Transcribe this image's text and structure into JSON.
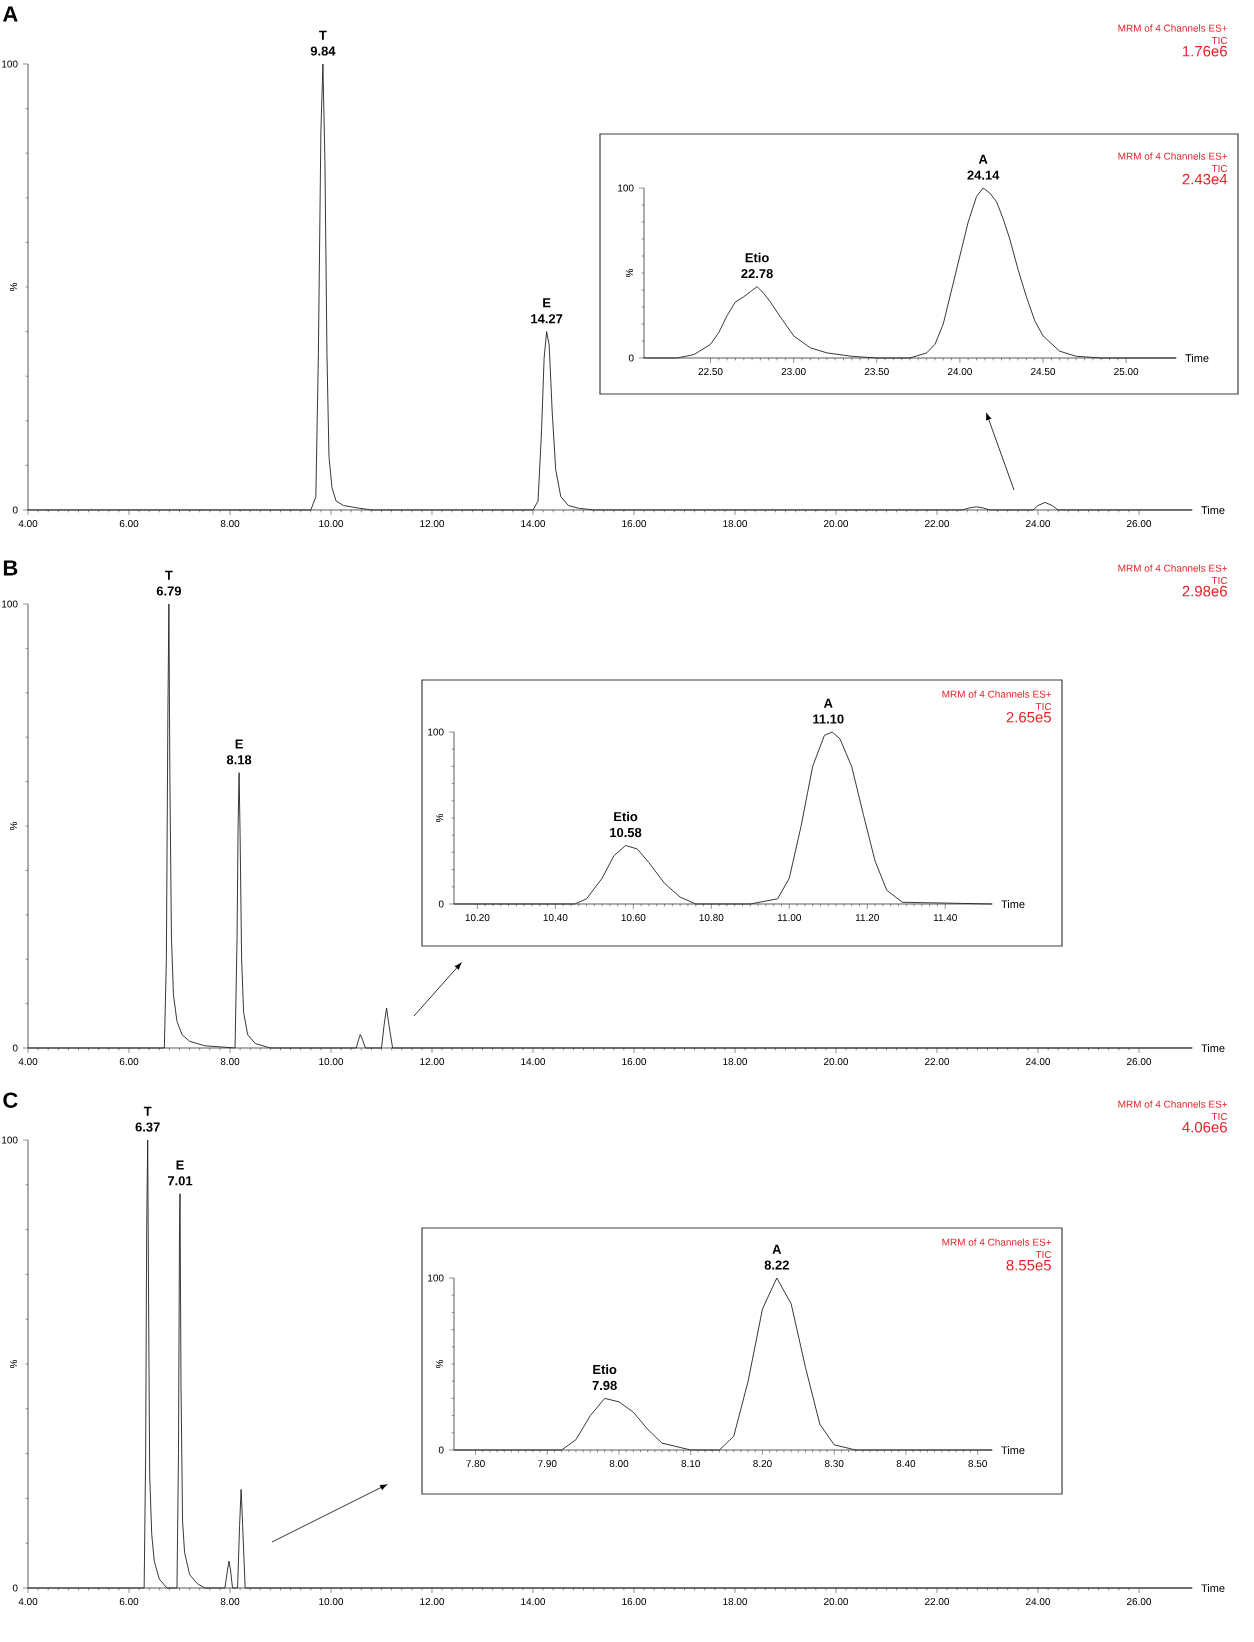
{
  "chart_data": [
    {
      "type": "line",
      "title": "A",
      "xlabel": "Time",
      "ylabel": "%",
      "color": "#222222",
      "xlim": [
        4,
        27.05
      ],
      "ylim": [
        0,
        100
      ],
      "yticks": [
        0,
        100
      ],
      "xticks": [
        {
          "value": 4,
          "label": "4.00"
        },
        {
          "value": 6,
          "label": "6.00"
        },
        {
          "value": 8,
          "label": "8.00"
        },
        {
          "value": 10,
          "label": "10.00"
        },
        {
          "value": 12,
          "label": "12.00"
        },
        {
          "value": 14,
          "label": "14.00"
        },
        {
          "value": 16,
          "label": "16.00"
        },
        {
          "value": 18,
          "label": "18.00"
        },
        {
          "value": 20,
          "label": "20.00"
        },
        {
          "value": 22,
          "label": "22.00"
        },
        {
          "value": 24,
          "label": "24.00"
        },
        {
          "value": 26,
          "label": "26.00"
        }
      ],
      "x": [
        4,
        9.6,
        9.7,
        9.75,
        9.8,
        9.84,
        9.88,
        9.92,
        9.96,
        10.02,
        10.1,
        10.25,
        10.5,
        10.8,
        14.0,
        14.1,
        14.17,
        14.22,
        14.27,
        14.32,
        14.38,
        14.45,
        14.55,
        14.7,
        14.9,
        15.2,
        22.5,
        22.65,
        22.78,
        22.9,
        23.05,
        23.9,
        24.0,
        24.14,
        24.28,
        24.4,
        27.05
      ],
      "values": [
        0,
        0,
        3,
        35,
        85,
        100,
        78,
        35,
        12,
        5,
        2,
        1,
        0.5,
        0,
        0,
        2,
        18,
        34,
        40,
        37,
        22,
        9,
        3,
        1,
        0.4,
        0,
        0,
        0.5,
        0.7,
        0.5,
        0,
        0,
        1,
        1.7,
        1,
        0,
        0
      ],
      "annotations": [
        "MRM of 4 Channels ES+",
        "TIC",
        "1.76e6",
        {
          "text": "T",
          "x": 9.84,
          "y": 100
        },
        {
          "text": "9.84",
          "x": 9.84,
          "y": 100
        },
        {
          "text": "E",
          "x": 14.27,
          "y": 40
        },
        {
          "text": "14.27",
          "x": 14.27,
          "y": 40
        }
      ]
    },
    {
      "type": "line",
      "xlabel": "Time",
      "ylabel": "%",
      "color": "#222222",
      "xlim": [
        22.1,
        25.3
      ],
      "ylim": [
        0,
        100
      ],
      "yticks": [
        0,
        100
      ],
      "xticks": [
        {
          "value": 22.5,
          "label": "22.50"
        },
        {
          "value": 23,
          "label": "23.00"
        },
        {
          "value": 23.5,
          "label": "23.50"
        },
        {
          "value": 24,
          "label": "24.00"
        },
        {
          "value": 24.5,
          "label": "24.50"
        },
        {
          "value": 25,
          "label": "25.00"
        }
      ],
      "x": [
        22.1,
        22.3,
        22.4,
        22.5,
        22.55,
        22.6,
        22.65,
        22.7,
        22.74,
        22.78,
        22.82,
        22.86,
        22.9,
        22.95,
        23.0,
        23.1,
        23.2,
        23.35,
        23.5,
        23.7,
        23.8,
        23.85,
        23.9,
        23.95,
        24.0,
        24.05,
        24.1,
        24.14,
        24.18,
        24.22,
        24.26,
        24.3,
        24.35,
        24.4,
        24.45,
        24.5,
        24.6,
        24.7,
        24.85,
        25.3
      ],
      "values": [
        0,
        0,
        2,
        8,
        15,
        25,
        33,
        36,
        39,
        42,
        38,
        33,
        27,
        20,
        13,
        6,
        3,
        1,
        0,
        0,
        3,
        8,
        20,
        40,
        60,
        80,
        95,
        100,
        97,
        92,
        82,
        70,
        52,
        36,
        22,
        13,
        4,
        1,
        0,
        0
      ],
      "annotations": [
        "MRM of 4 Channels ES+",
        "TIC",
        "2.43e4",
        {
          "text": "Etio",
          "x": 22.78,
          "y": 42
        },
        {
          "text": "22.78",
          "x": 22.78,
          "y": 42
        },
        {
          "text": "A",
          "x": 24.14,
          "y": 100
        },
        {
          "text": "24.14",
          "x": 24.14,
          "y": 100
        }
      ]
    },
    {
      "type": "line",
      "title": "B",
      "xlabel": "Time",
      "ylabel": "%",
      "color": "#222222",
      "xlim": [
        4,
        27.05
      ],
      "ylim": [
        0,
        100
      ],
      "yticks": [
        0,
        100
      ],
      "xticks": [
        {
          "value": 4,
          "label": "4.00"
        },
        {
          "value": 6,
          "label": "6.00"
        },
        {
          "value": 8,
          "label": "8.00"
        },
        {
          "value": 10,
          "label": "10.00"
        },
        {
          "value": 12,
          "label": "12.00"
        },
        {
          "value": 14,
          "label": "14.00"
        },
        {
          "value": 16,
          "label": "16.00"
        },
        {
          "value": 18,
          "label": "18.00"
        },
        {
          "value": 20,
          "label": "20.00"
        },
        {
          "value": 22,
          "label": "22.00"
        },
        {
          "value": 24,
          "label": "24.00"
        },
        {
          "value": 26,
          "label": "26.00"
        }
      ],
      "x": [
        4,
        6.7,
        6.74,
        6.77,
        6.79,
        6.81,
        6.84,
        6.88,
        6.95,
        7.05,
        7.2,
        7.5,
        8.1,
        8.14,
        8.16,
        8.18,
        8.2,
        8.23,
        8.27,
        8.35,
        8.5,
        8.8,
        10.5,
        10.55,
        10.58,
        10.62,
        10.68,
        11.0,
        11.05,
        11.1,
        11.15,
        11.22,
        27.05
      ],
      "values": [
        0,
        0,
        20,
        75,
        100,
        60,
        25,
        12,
        6,
        3,
        1.5,
        0.5,
        0,
        25,
        50,
        62,
        48,
        20,
        8,
        3,
        1,
        0,
        0,
        2,
        3,
        2,
        0,
        0,
        5,
        9,
        5,
        0,
        0
      ],
      "annotations": [
        "MRM of 4 Channels ES+",
        "TIC",
        "2.98e6",
        {
          "text": "T",
          "x": 6.79,
          "y": 100
        },
        {
          "text": "6.79",
          "x": 6.79,
          "y": 100
        },
        {
          "text": "E",
          "x": 8.18,
          "y": 62
        },
        {
          "text": "8.18",
          "x": 8.18,
          "y": 62
        }
      ]
    },
    {
      "type": "line",
      "xlabel": "Time",
      "ylabel": "%",
      "color": "#222222",
      "xlim": [
        10.14,
        11.52
      ],
      "ylim": [
        0,
        100
      ],
      "yticks": [
        0,
        100
      ],
      "xticks": [
        {
          "value": 10.2,
          "label": "10.20"
        },
        {
          "value": 10.4,
          "label": "10.40"
        },
        {
          "value": 10.6,
          "label": "10.60"
        },
        {
          "value": 10.8,
          "label": "10.80"
        },
        {
          "value": 11.0,
          "label": "11.00"
        },
        {
          "value": 11.2,
          "label": "11.20"
        },
        {
          "value": 11.4,
          "label": "11.40"
        }
      ],
      "x": [
        10.14,
        10.45,
        10.48,
        10.52,
        10.55,
        10.58,
        10.61,
        10.64,
        10.68,
        10.72,
        10.76,
        10.9,
        10.97,
        11.0,
        11.03,
        11.06,
        11.09,
        11.11,
        11.13,
        11.16,
        11.19,
        11.22,
        11.25,
        11.29,
        11.52
      ],
      "values": [
        0,
        0,
        3,
        15,
        28,
        34,
        32,
        24,
        12,
        4,
        0,
        0,
        3,
        15,
        45,
        80,
        98,
        100,
        96,
        80,
        52,
        25,
        8,
        1,
        0
      ],
      "annotations": [
        "MRM of 4 Channels ES+",
        "TIC",
        "2.65e5",
        {
          "text": "Etio",
          "x": 10.58,
          "y": 34
        },
        {
          "text": "10.58",
          "x": 10.58,
          "y": 34
        },
        {
          "text": "A",
          "x": 11.1,
          "y": 100
        },
        {
          "text": "11.10",
          "x": 11.1,
          "y": 100
        }
      ]
    },
    {
      "type": "line",
      "title": "C",
      "xlabel": "Time",
      "ylabel": "%",
      "color": "#222222",
      "xlim": [
        4,
        27.05
      ],
      "ylim": [
        0,
        100
      ],
      "yticks": [
        0,
        100
      ],
      "xticks": [
        {
          "value": 4,
          "label": "4.00"
        },
        {
          "value": 6,
          "label": "6.00"
        },
        {
          "value": 8,
          "label": "8.00"
        },
        {
          "value": 10,
          "label": "10.00"
        },
        {
          "value": 12,
          "label": "12.00"
        },
        {
          "value": 14,
          "label": "14.00"
        },
        {
          "value": 16,
          "label": "16.00"
        },
        {
          "value": 18,
          "label": "18.00"
        },
        {
          "value": 20,
          "label": "20.00"
        },
        {
          "value": 22,
          "label": "22.00"
        },
        {
          "value": 24,
          "label": "24.00"
        },
        {
          "value": 26,
          "label": "26.00"
        }
      ],
      "x": [
        4,
        6.3,
        6.33,
        6.35,
        6.37,
        6.39,
        6.41,
        6.45,
        6.5,
        6.6,
        6.75,
        6.95,
        6.98,
        7.0,
        7.01,
        7.03,
        7.06,
        7.1,
        7.2,
        7.35,
        7.5,
        7.9,
        7.95,
        7.98,
        8.01,
        8.05,
        8.15,
        8.19,
        8.22,
        8.25,
        8.3,
        27.05
      ],
      "values": [
        0,
        0,
        30,
        80,
        100,
        60,
        25,
        12,
        6,
        2,
        0,
        0,
        30,
        80,
        88,
        45,
        15,
        8,
        3,
        1,
        0,
        0,
        4,
        6,
        4,
        0,
        0,
        14,
        22,
        14,
        0,
        0
      ],
      "annotations": [
        "MRM of 4 Channels ES+",
        "TIC",
        "4.06e6",
        {
          "text": "T",
          "x": 6.37,
          "y": 100
        },
        {
          "text": "6.37",
          "x": 6.37,
          "y": 100
        },
        {
          "text": "E",
          "x": 7.01,
          "y": 88
        },
        {
          "text": "7.01",
          "x": 7.01,
          "y": 88
        }
      ]
    },
    {
      "type": "line",
      "xlabel": "Time",
      "ylabel": "%",
      "color": "#222222",
      "xlim": [
        7.77,
        8.52
      ],
      "ylim": [
        0,
        100
      ],
      "yticks": [
        0,
        100
      ],
      "xticks": [
        {
          "value": 7.8,
          "label": "7.80"
        },
        {
          "value": 7.9,
          "label": "7.90"
        },
        {
          "value": 8.0,
          "label": "8.00"
        },
        {
          "value": 8.1,
          "label": "8.10"
        },
        {
          "value": 8.2,
          "label": "8.20"
        },
        {
          "value": 8.3,
          "label": "8.30"
        },
        {
          "value": 8.4,
          "label": "8.40"
        },
        {
          "value": 8.5,
          "label": "8.50"
        }
      ],
      "x": [
        7.77,
        7.92,
        7.94,
        7.96,
        7.98,
        8.0,
        8.02,
        8.04,
        8.06,
        8.1,
        8.14,
        8.16,
        8.18,
        8.2,
        8.22,
        8.24,
        8.26,
        8.28,
        8.3,
        8.33,
        8.52
      ],
      "values": [
        0,
        0,
        6,
        20,
        30,
        28,
        22,
        12,
        4,
        0,
        0,
        8,
        40,
        82,
        100,
        85,
        48,
        15,
        3,
        0,
        0
      ],
      "annotations": [
        "MRM of 4 Channels ES+",
        "TIC",
        "8.55e5",
        {
          "text": "Etio",
          "x": 7.98,
          "y": 30
        },
        {
          "text": "7.98",
          "x": 7.98,
          "y": 30
        },
        {
          "text": "A",
          "x": 8.22,
          "y": 100
        },
        {
          "text": "8.22",
          "x": 8.22,
          "y": 100
        }
      ]
    }
  ]
}
